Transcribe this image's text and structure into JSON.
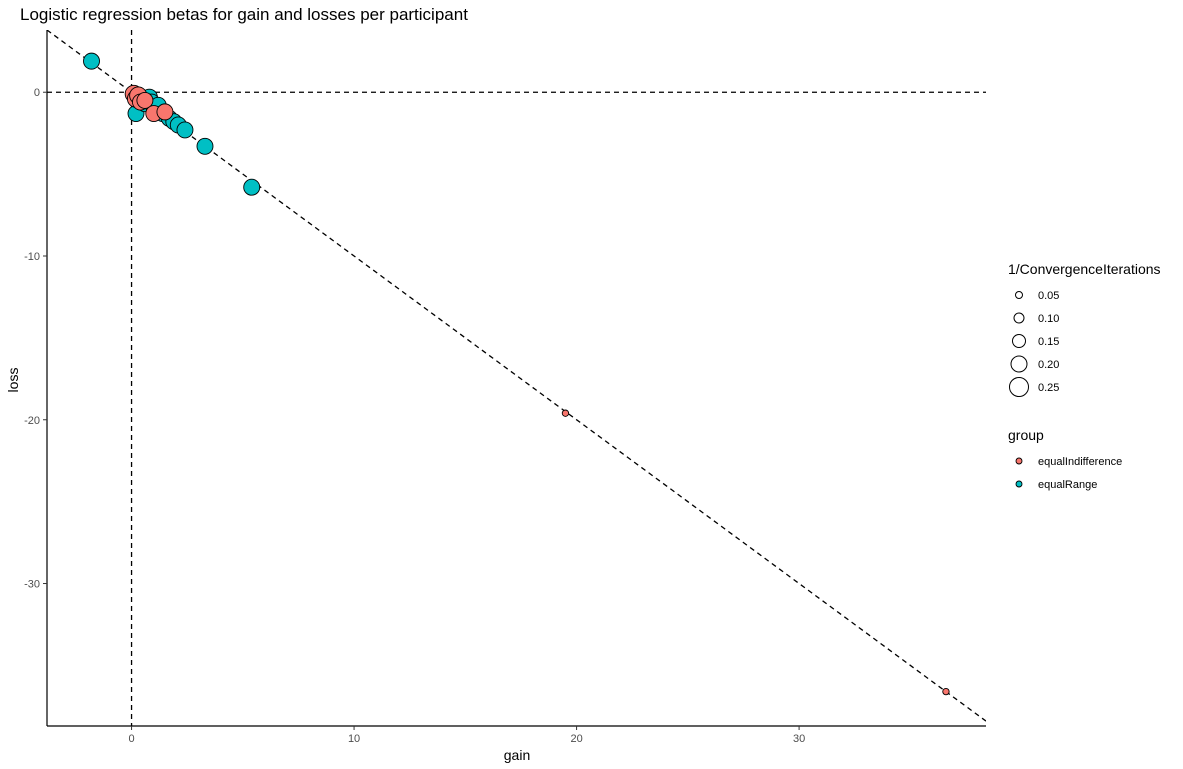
{
  "chart_data": {
    "type": "scatter",
    "title": "Logistic regression betas for gain and losses per participant",
    "xlabel": "gain",
    "ylabel": "loss",
    "xlim": [
      -3.8,
      38.4
    ],
    "ylim": [
      -38.7,
      3.8
    ],
    "xticks": [
      0,
      10,
      20,
      30
    ],
    "yticks": [
      0,
      -10,
      -20,
      -30
    ],
    "grid": false,
    "reference_lines": {
      "hline_y": 0,
      "vline_x": 0,
      "diagonal": "y = -x"
    },
    "legend_placement": "right",
    "size_legend": {
      "title": "1/ConvergenceIterations",
      "entries": [
        {
          "label": "0.05",
          "value": 0.05
        },
        {
          "label": "0.10",
          "value": 0.1
        },
        {
          "label": "0.15",
          "value": 0.15
        },
        {
          "label": "0.20",
          "value": 0.2
        },
        {
          "label": "0.25",
          "value": 0.25
        }
      ]
    },
    "color_legend": {
      "title": "group",
      "entries": [
        {
          "label": "equalIndifference",
          "color": "#F8766D"
        },
        {
          "label": "equalRange",
          "color": "#00BFC4"
        }
      ]
    },
    "series": [
      {
        "name": "equalRange",
        "color": "#00BFC4",
        "points": [
          {
            "x": -1.8,
            "y": 1.9,
            "size": 0.2
          },
          {
            "x": 0.2,
            "y": -1.3,
            "size": 0.2
          },
          {
            "x": 0.5,
            "y": -0.4,
            "size": 0.2
          },
          {
            "x": 0.6,
            "y": -0.7,
            "size": 0.2
          },
          {
            "x": 0.8,
            "y": -0.3,
            "size": 0.2
          },
          {
            "x": 0.9,
            "y": -0.6,
            "size": 0.2
          },
          {
            "x": 1.0,
            "y": -0.9,
            "size": 0.2
          },
          {
            "x": 1.2,
            "y": -0.8,
            "size": 0.2
          },
          {
            "x": 1.4,
            "y": -1.3,
            "size": 0.2
          },
          {
            "x": 1.7,
            "y": -1.6,
            "size": 0.2
          },
          {
            "x": 1.9,
            "y": -1.8,
            "size": 0.2
          },
          {
            "x": 2.1,
            "y": -2.0,
            "size": 0.2
          },
          {
            "x": 2.4,
            "y": -2.3,
            "size": 0.2
          },
          {
            "x": 3.3,
            "y": -3.3,
            "size": 0.2
          },
          {
            "x": 5.4,
            "y": -5.8,
            "size": 0.2
          }
        ]
      },
      {
        "name": "equalIndifference",
        "color": "#F8766D",
        "points": [
          {
            "x": 0.1,
            "y": -0.1,
            "size": 0.22
          },
          {
            "x": 0.2,
            "y": -0.4,
            "size": 0.22
          },
          {
            "x": 0.3,
            "y": -0.2,
            "size": 0.22
          },
          {
            "x": 0.4,
            "y": -0.6,
            "size": 0.2
          },
          {
            "x": 0.6,
            "y": -0.5,
            "size": 0.2
          },
          {
            "x": 1.0,
            "y": -1.3,
            "size": 0.2
          },
          {
            "x": 1.5,
            "y": -1.2,
            "size": 0.2
          },
          {
            "x": 19.5,
            "y": -19.6,
            "size": 0.04
          },
          {
            "x": 36.6,
            "y": -36.6,
            "size": 0.04
          }
        ]
      }
    ]
  }
}
